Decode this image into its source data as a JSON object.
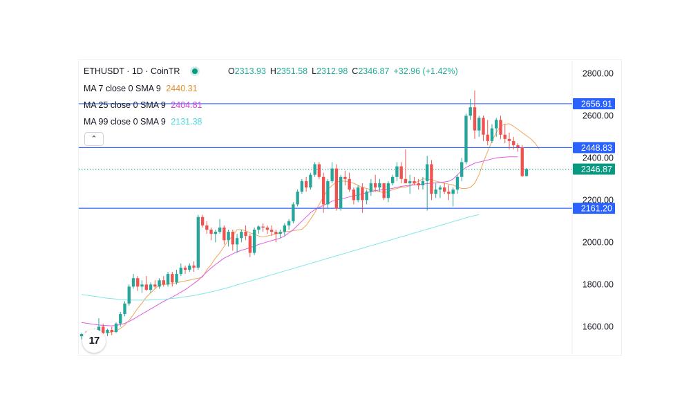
{
  "header": {
    "symbol": "ETHUSDT · 1D · CoinTR",
    "open_label": "O",
    "open": "2313.93",
    "high_label": "H",
    "high": "2351.58",
    "low_label": "L",
    "low": "2312.98",
    "close_label": "C",
    "close": "2346.87",
    "change": "+32.96 (+1.42%)"
  },
  "indicators": [
    {
      "label": "MA 7 close 0 SMA 9",
      "value": "2440.31",
      "color": "#e08f2a"
    },
    {
      "label": "MA 25 close 0 SMA 9",
      "value": "2404.81",
      "color": "#d63fd6"
    },
    {
      "label": "MA 99 close 0 SMA 9",
      "value": "2131.38",
      "color": "#5ee0e6"
    }
  ],
  "collapse_icon": "chevron-up-icon",
  "logo_text": "17",
  "colors": {
    "up": "#26a69a",
    "down": "#ef5350",
    "hline": "#2962ff",
    "price_tag": "#089981"
  },
  "chart_data": {
    "type": "candlestick",
    "ylim": [
      1470,
      2860
    ],
    "y_ticks": [
      "2800.00",
      "2600.00",
      "2400.00",
      "2200.00",
      "2000.00",
      "1800.00",
      "1600.00"
    ],
    "y_tick_values": [
      2800,
      2600,
      2400,
      2200,
      2000,
      1800,
      1600
    ],
    "horizontal_lines": [
      {
        "value": 2656.91,
        "label": "2656.91"
      },
      {
        "value": 2448.83,
        "label": "2448.83"
      },
      {
        "value": 2161.2,
        "label": "2161.20"
      }
    ],
    "last_price": {
      "value": 2346.87,
      "label": "2346.87"
    },
    "candles": [
      [
        1555,
        1570,
        1540,
        1565
      ],
      [
        1565,
        1580,
        1550,
        1560
      ],
      [
        1560,
        1585,
        1555,
        1575
      ],
      [
        1575,
        1590,
        1565,
        1580
      ],
      [
        1580,
        1640,
        1570,
        1600
      ],
      [
        1600,
        1615,
        1560,
        1570
      ],
      [
        1570,
        1590,
        1555,
        1585
      ],
      [
        1585,
        1600,
        1560,
        1575
      ],
      [
        1575,
        1620,
        1570,
        1615
      ],
      [
        1615,
        1670,
        1600,
        1660
      ],
      [
        1660,
        1720,
        1650,
        1710
      ],
      [
        1710,
        1800,
        1700,
        1790
      ],
      [
        1790,
        1850,
        1780,
        1830
      ],
      [
        1830,
        1840,
        1770,
        1790
      ],
      [
        1790,
        1820,
        1760,
        1800
      ],
      [
        1800,
        1840,
        1770,
        1775
      ],
      [
        1775,
        1810,
        1760,
        1800
      ],
      [
        1800,
        1820,
        1780,
        1790
      ],
      [
        1790,
        1830,
        1780,
        1820
      ],
      [
        1820,
        1840,
        1790,
        1800
      ],
      [
        1800,
        1860,
        1790,
        1850
      ],
      [
        1850,
        1860,
        1790,
        1810
      ],
      [
        1810,
        1870,
        1800,
        1850
      ],
      [
        1850,
        1900,
        1840,
        1880
      ],
      [
        1880,
        1890,
        1850,
        1870
      ],
      [
        1870,
        1900,
        1860,
        1890
      ],
      [
        1890,
        1910,
        1860,
        1880
      ],
      [
        1880,
        2130,
        1870,
        2120
      ],
      [
        2120,
        2130,
        2070,
        2080
      ],
      [
        2080,
        2100,
        2040,
        2060
      ],
      [
        2060,
        2070,
        2010,
        2040
      ],
      [
        2040,
        2060,
        2000,
        2050
      ],
      [
        2050,
        2110,
        2040,
        2070
      ],
      [
        2070,
        2080,
        1990,
        2010
      ],
      [
        2010,
        2060,
        1980,
        2050
      ],
      [
        2050,
        2060,
        1960,
        1990
      ],
      [
        1990,
        2040,
        1950,
        2020
      ],
      [
        2020,
        2060,
        2000,
        2050
      ],
      [
        2050,
        2080,
        2010,
        2030
      ],
      [
        2030,
        2040,
        1930,
        1950
      ],
      [
        1950,
        2070,
        1940,
        2060
      ],
      [
        2060,
        2080,
        2040,
        2075
      ],
      [
        2075,
        2090,
        2050,
        2070
      ],
      [
        2070,
        2080,
        2040,
        2060
      ],
      [
        2060,
        2080,
        2030,
        2050
      ],
      [
        2050,
        2060,
        2000,
        2040
      ],
      [
        2040,
        2060,
        2020,
        2050
      ],
      [
        2050,
        2090,
        2030,
        2080
      ],
      [
        2080,
        2110,
        2060,
        2100
      ],
      [
        2100,
        2190,
        2090,
        2180
      ],
      [
        2180,
        2250,
        2170,
        2240
      ],
      [
        2240,
        2300,
        2230,
        2290
      ],
      [
        2290,
        2310,
        2240,
        2260
      ],
      [
        2260,
        2330,
        2250,
        2320
      ],
      [
        2320,
        2380,
        2310,
        2370
      ],
      [
        2370,
        2380,
        2300,
        2310
      ],
      [
        2310,
        2330,
        2140,
        2180
      ],
      [
        2180,
        2300,
        2160,
        2290
      ],
      [
        2290,
        2380,
        2280,
        2350
      ],
      [
        2350,
        2370,
        2150,
        2160
      ],
      [
        2160,
        2320,
        2150,
        2310
      ],
      [
        2310,
        2340,
        2270,
        2300
      ],
      [
        2300,
        2330,
        2240,
        2250
      ],
      [
        2250,
        2260,
        2180,
        2200
      ],
      [
        2200,
        2270,
        2190,
        2260
      ],
      [
        2260,
        2280,
        2140,
        2200
      ],
      [
        2200,
        2250,
        2180,
        2240
      ],
      [
        2240,
        2300,
        2220,
        2280
      ],
      [
        2280,
        2320,
        2240,
        2260
      ],
      [
        2260,
        2300,
        2240,
        2280
      ],
      [
        2280,
        2280,
        2200,
        2210
      ],
      [
        2210,
        2290,
        2190,
        2280
      ],
      [
        2280,
        2320,
        2270,
        2310
      ],
      [
        2310,
        2380,
        2290,
        2360
      ],
      [
        2360,
        2380,
        2280,
        2300
      ],
      [
        2300,
        2440,
        2280,
        2280
      ],
      [
        2280,
        2320,
        2230,
        2290
      ],
      [
        2290,
        2310,
        2270,
        2280
      ],
      [
        2280,
        2300,
        2250,
        2270
      ],
      [
        2270,
        2310,
        2250,
        2290
      ],
      [
        2290,
        2410,
        2150,
        2370
      ],
      [
        2370,
        2390,
        2200,
        2230
      ],
      [
        2230,
        2280,
        2210,
        2250
      ],
      [
        2250,
        2270,
        2210,
        2260
      ],
      [
        2260,
        2280,
        2230,
        2240
      ],
      [
        2240,
        2270,
        2200,
        2230
      ],
      [
        2230,
        2260,
        2170,
        2250
      ],
      [
        2250,
        2320,
        2230,
        2310
      ],
      [
        2310,
        2400,
        2290,
        2380
      ],
      [
        2380,
        2610,
        2370,
        2600
      ],
      [
        2600,
        2680,
        2580,
        2640
      ],
      [
        2640,
        2720,
        2490,
        2530
      ],
      [
        2530,
        2600,
        2500,
        2590
      ],
      [
        2590,
        2600,
        2480,
        2510
      ],
      [
        2510,
        2580,
        2460,
        2480
      ],
      [
        2480,
        2560,
        2470,
        2540
      ],
      [
        2540,
        2590,
        2500,
        2580
      ],
      [
        2580,
        2600,
        2490,
        2510
      ],
      [
        2510,
        2560,
        2470,
        2490
      ],
      [
        2490,
        2520,
        2440,
        2480
      ],
      [
        2480,
        2500,
        2440,
        2460
      ],
      [
        2460,
        2470,
        2430,
        2450
      ],
      [
        2450,
        2460,
        2310,
        2314
      ],
      [
        2314,
        2352,
        2313,
        2347
      ]
    ],
    "moving_averages": [
      {
        "name": "MA 7",
        "color": "#f0a65a",
        "start_index": 6,
        "values": [
          1572,
          1575,
          1580,
          1592,
          1608,
          1630,
          1657,
          1687,
          1712,
          1740,
          1760,
          1780,
          1796,
          1800,
          1802,
          1804,
          1808,
          1813,
          1817,
          1821,
          1826,
          1830,
          1835,
          1870,
          1895,
          1925,
          1950,
          1980,
          2010,
          2030,
          2060,
          2060,
          2055,
          2045,
          2038,
          2030,
          2025,
          2030,
          2035,
          2040,
          2045,
          2050,
          2052,
          2055,
          2058,
          2062,
          2080,
          2110,
          2140,
          2180,
          2215,
          2250,
          2270,
          2285,
          2290,
          2290,
          2285,
          2280,
          2270,
          2260,
          2255,
          2250,
          2245,
          2240,
          2235,
          2240,
          2250,
          2255,
          2260,
          2262,
          2268,
          2280,
          2290,
          2300,
          2300,
          2295,
          2290,
          2285,
          2280,
          2275,
          2272,
          2262,
          2255,
          2255,
          2260,
          2280,
          2320,
          2380,
          2430,
          2480,
          2520,
          2550,
          2560,
          2562,
          2550,
          2535,
          2520,
          2505,
          2490,
          2470,
          2440
        ]
      },
      {
        "name": "MA 25",
        "color": "#e05be0",
        "start_index": 0,
        "values": [
          1620,
          1617,
          1614,
          1611,
          1608,
          1606,
          1605,
          1604,
          1606,
          1610,
          1616,
          1625,
          1636,
          1648,
          1660,
          1672,
          1684,
          1696,
          1708,
          1720,
          1730,
          1740,
          1752,
          1764,
          1776,
          1790,
          1805,
          1820,
          1840,
          1860,
          1878,
          1895,
          1910,
          1925,
          1935,
          1945,
          1955,
          1962,
          1968,
          1975,
          1982,
          1990,
          1996,
          2002,
          2008,
          2014,
          2020,
          2030,
          2045,
          2060,
          2080,
          2100,
          2120,
          2140,
          2155,
          2165,
          2175,
          2185,
          2195,
          2200,
          2205,
          2210,
          2215,
          2220,
          2225,
          2230,
          2235,
          2240,
          2245,
          2248,
          2250,
          2252,
          2256,
          2260,
          2265,
          2268,
          2270,
          2272,
          2274,
          2276,
          2278,
          2280,
          2282,
          2284,
          2286,
          2290,
          2300,
          2320,
          2340,
          2355,
          2365,
          2375,
          2380,
          2385,
          2390,
          2395,
          2400,
          2402,
          2404,
          2405,
          2405,
          2405
        ]
      },
      {
        "name": "MA 99",
        "color": "#7fe6ea",
        "start_index": 0,
        "values": [
          1753,
          1750,
          1747,
          1744,
          1741,
          1738,
          1735,
          1733,
          1731,
          1729,
          1728,
          1727,
          1726,
          1726,
          1726,
          1726,
          1727,
          1728,
          1729,
          1730,
          1732,
          1734,
          1736,
          1739,
          1742,
          1745,
          1748,
          1752,
          1756,
          1760,
          1765,
          1770,
          1775,
          1780,
          1786,
          1792,
          1798,
          1804,
          1810,
          1816,
          1822,
          1828,
          1834,
          1840,
          1846,
          1852,
          1858,
          1864,
          1870,
          1876,
          1882,
          1888,
          1894,
          1900,
          1906,
          1912,
          1918,
          1924,
          1930,
          1936,
          1942,
          1948,
          1954,
          1960,
          1966,
          1972,
          1978,
          1984,
          1990,
          1996,
          2002,
          2008,
          2014,
          2020,
          2026,
          2032,
          2038,
          2044,
          2050,
          2056,
          2062,
          2068,
          2074,
          2080,
          2086,
          2092,
          2098,
          2104,
          2110,
          2116,
          2122,
          2127,
          2131
        ]
      }
    ]
  }
}
